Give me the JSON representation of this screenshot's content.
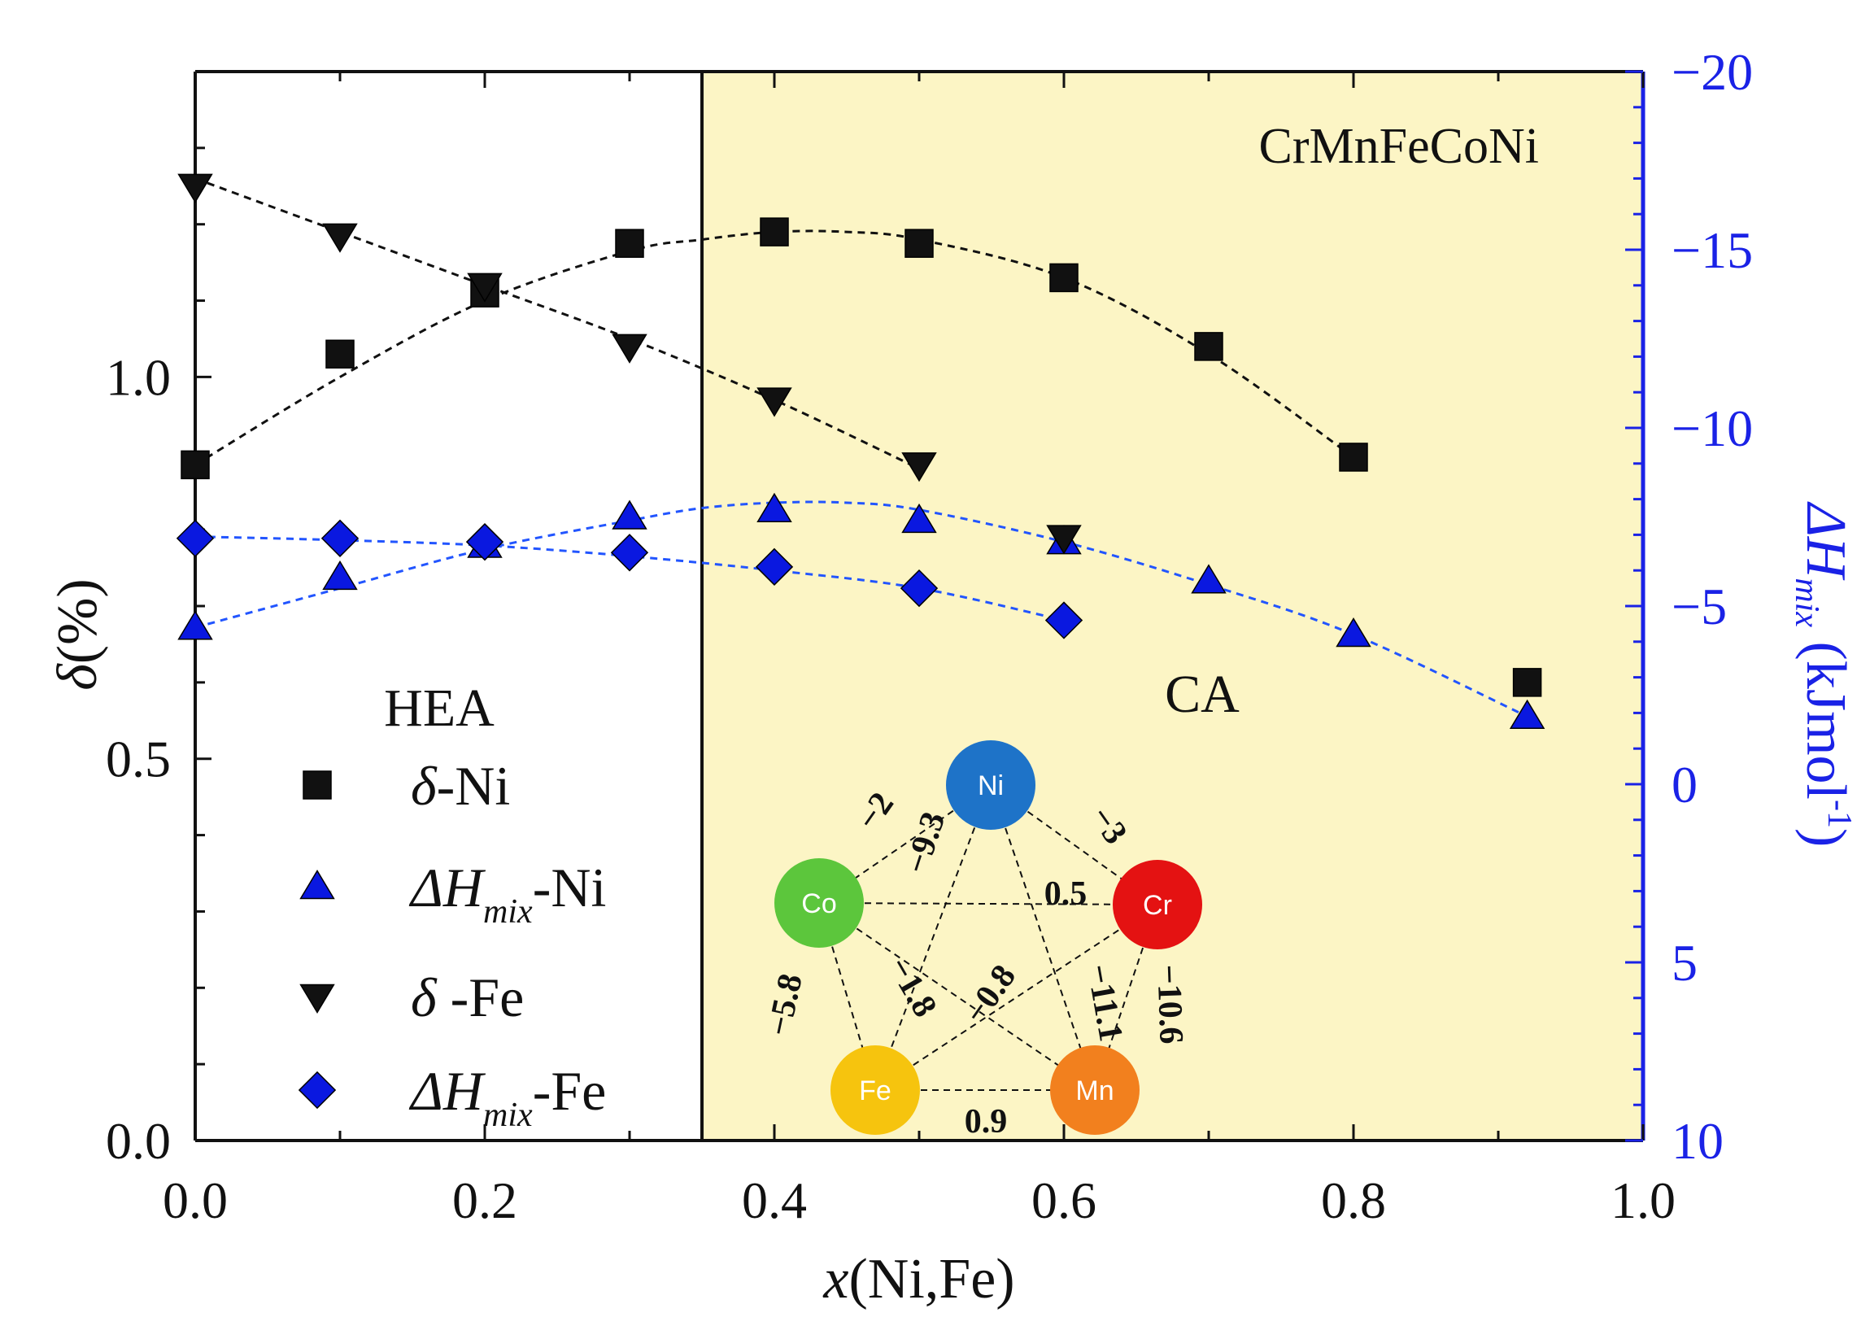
{
  "chart_data": {
    "type": "scatter",
    "title": "CrMnFeCoNi",
    "xlabel": "x(Ni,Fe)",
    "ylabel_left": "δ(%)",
    "ylabel_right": "ΔH_mix (kJmol⁻¹)",
    "xlim": [
      0.0,
      1.0
    ],
    "ylim_left": [
      0.0,
      1.4
    ],
    "ylim_right": [
      10,
      -20
    ],
    "x_ticks": [
      "0.0",
      "0.2",
      "0.4",
      "0.6",
      "0.8",
      "1.0"
    ],
    "y_left_ticks": [
      "0.0",
      "0.5",
      "1.0"
    ],
    "y_right_ticks": [
      "10",
      "5",
      "0",
      "−5",
      "−10",
      "−15",
      "−20"
    ],
    "region_boundary_x": 0.35,
    "regions": {
      "left": "HEA",
      "right": "CA"
    },
    "colors": {
      "ca_region": "#fcf5c5",
      "black": "#111111",
      "blue": "#0a18e0",
      "blue_axis": "#1a22e6",
      "fit_blue": "#2255ff"
    },
    "series": [
      {
        "name": "δ-Ni",
        "legend_prefix": "δ",
        "legend_suffix": "-Ni",
        "axis": "left",
        "marker": "square",
        "color": "#111111",
        "x": [
          0.0,
          0.1,
          0.2,
          0.3,
          0.4,
          0.5,
          0.6,
          0.7,
          0.8,
          0.92
        ],
        "values": [
          0.885,
          1.03,
          1.11,
          1.175,
          1.19,
          1.175,
          1.13,
          1.04,
          0.895,
          0.6
        ]
      },
      {
        "name": "ΔH_mix-Ni",
        "legend_prefix": "ΔH",
        "legend_sub": "mix",
        "legend_suffix": "-Ni",
        "axis": "right",
        "marker": "triangle-up",
        "color": "#0a18e0",
        "x": [
          0.0,
          0.1,
          0.2,
          0.3,
          0.4,
          0.5,
          0.6,
          0.7,
          0.8,
          0.92
        ],
        "values": [
          -4.4,
          -5.8,
          -6.7,
          -7.5,
          -7.7,
          -7.4,
          -6.8,
          -5.7,
          -4.2,
          -1.9
        ]
      },
      {
        "name": "δ-Fe",
        "legend_prefix": "δ",
        "legend_suffix": " -Fe",
        "axis": "left",
        "marker": "triangle-down",
        "color": "#111111",
        "x": [
          0.0,
          0.1,
          0.2,
          0.3,
          0.4,
          0.5,
          0.6
        ],
        "values": [
          1.25,
          1.185,
          1.12,
          1.04,
          0.97,
          0.885,
          0.79
        ]
      },
      {
        "name": "ΔH_mix-Fe",
        "legend_prefix": "ΔH",
        "legend_sub": "mix",
        "legend_suffix": "-Fe",
        "axis": "right",
        "marker": "diamond",
        "color": "#0a18e0",
        "x": [
          0.0,
          0.1,
          0.2,
          0.3,
          0.4,
          0.5,
          0.6
        ],
        "values": [
          -6.9,
          -6.9,
          -6.8,
          -6.5,
          -6.1,
          -5.5,
          -4.6
        ]
      }
    ],
    "fits": [
      {
        "series": "δ-Ni",
        "style": "dashed",
        "color": "#111111",
        "axis": "left",
        "x": [
          0.0,
          0.1,
          0.2,
          0.3,
          0.35,
          0.4,
          0.45,
          0.5,
          0.6,
          0.7,
          0.8
        ],
        "values": [
          0.885,
          1.0,
          1.1,
          1.165,
          1.18,
          1.19,
          1.19,
          1.18,
          1.13,
          1.03,
          0.895
        ]
      },
      {
        "series": "δ-Fe",
        "style": "dashed",
        "color": "#111111",
        "axis": "left",
        "x": [
          0.0,
          0.1,
          0.2,
          0.3,
          0.4,
          0.5
        ],
        "values": [
          1.26,
          1.19,
          1.12,
          1.05,
          0.97,
          0.88
        ]
      },
      {
        "series": "ΔH_mix-Ni",
        "style": "dashed",
        "color": "#2255ff",
        "axis": "right",
        "x": [
          0.0,
          0.1,
          0.2,
          0.3,
          0.35,
          0.4,
          0.45,
          0.5,
          0.6,
          0.7,
          0.8,
          0.92
        ],
        "values": [
          -4.4,
          -5.5,
          -6.6,
          -7.4,
          -7.75,
          -7.9,
          -7.9,
          -7.7,
          -6.8,
          -5.6,
          -4.2,
          -1.9
        ]
      },
      {
        "series": "ΔH_mix-Fe",
        "style": "dashed",
        "color": "#2255ff",
        "axis": "right",
        "x": [
          0.0,
          0.1,
          0.2,
          0.3,
          0.4,
          0.5,
          0.6
        ],
        "values": [
          -6.95,
          -6.85,
          -6.7,
          -6.4,
          -6.0,
          -5.5,
          -4.6
        ]
      }
    ],
    "inset": {
      "description": "Mixing enthalpy between element pairs",
      "nodes": [
        {
          "id": "Ni",
          "label": "Ni",
          "color": "#1e73c8"
        },
        {
          "id": "Co",
          "label": "Co",
          "color": "#5cc63c"
        },
        {
          "id": "Cr",
          "label": "Cr",
          "color": "#e41212"
        },
        {
          "id": "Fe",
          "label": "Fe",
          "color": "#f6c40e"
        },
        {
          "id": "Mn",
          "label": "Mn",
          "color": "#f2801e"
        }
      ],
      "edges": [
        {
          "from": "Ni",
          "to": "Co",
          "label": "−2"
        },
        {
          "from": "Ni",
          "to": "Fe",
          "label": "−9.3"
        },
        {
          "from": "Ni",
          "to": "Cr",
          "label": "−3"
        },
        {
          "from": "Ni",
          "to": "Mn",
          "label": "−11.1"
        },
        {
          "from": "Co",
          "to": "Cr",
          "label": "0.5"
        },
        {
          "from": "Co",
          "to": "Fe",
          "label": "−5.8"
        },
        {
          "from": "Co",
          "to": "Mn",
          "label": "−1.8"
        },
        {
          "from": "Fe",
          "to": "Cr",
          "label": "−0.8"
        },
        {
          "from": "Cr",
          "to": "Mn",
          "label": "−10.6"
        },
        {
          "from": "Fe",
          "to": "Mn",
          "label": "0.9"
        }
      ]
    }
  }
}
